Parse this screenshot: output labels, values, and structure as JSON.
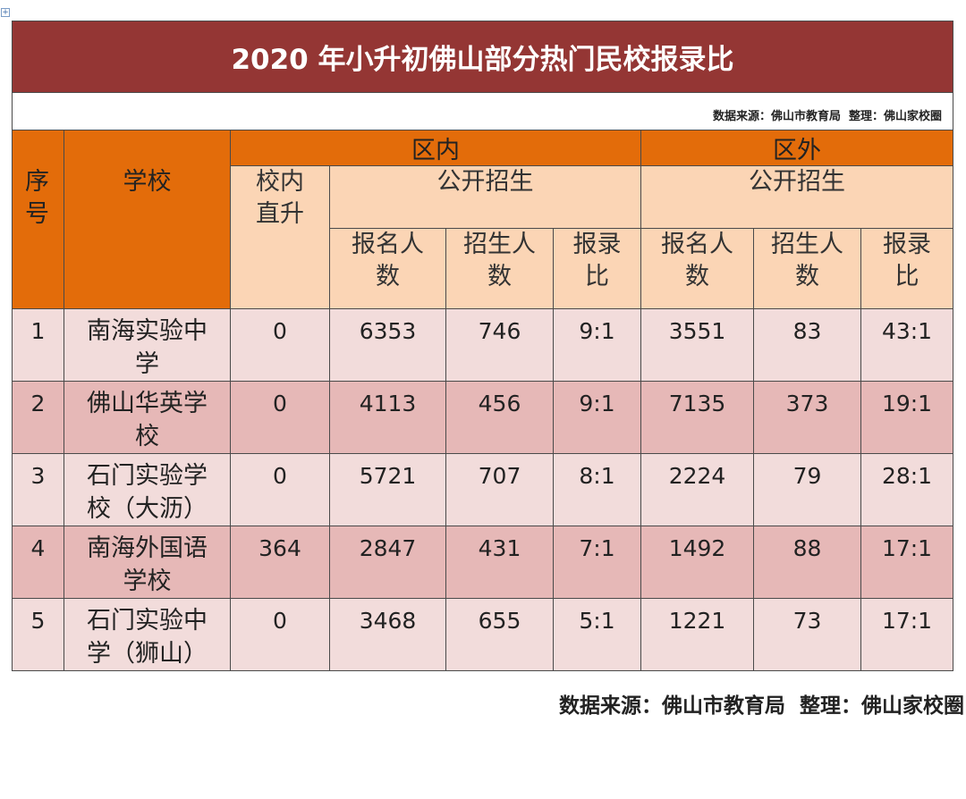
{
  "title": "2020 年小升初佛山部分热门民校报录比",
  "source_note": "数据来源：佛山市教育局  整理：佛山家校圈",
  "table": {
    "header": {
      "seq": "序号",
      "school": "学校",
      "in_district": {
        "label": "区内",
        "direct": "校内直升",
        "open": {
          "label": "公开招生",
          "cols": [
            "报名人数",
            "招生人数",
            "报录比"
          ]
        }
      },
      "out_district": {
        "label": "区外",
        "open": {
          "label": "公开招生",
          "cols": [
            "报名人数",
            "招生人数",
            "报录比"
          ]
        }
      }
    },
    "rows": [
      [
        1,
        "南海实验中学",
        0,
        6353,
        746,
        "9:1",
        3551,
        83,
        "43:1"
      ],
      [
        2,
        "佛山华英学校",
        0,
        4113,
        456,
        "9:1",
        7135,
        373,
        "19:1"
      ],
      [
        3,
        "石门实验学校（大沥）",
        0,
        5721,
        707,
        "8:1",
        2224,
        79,
        "28:1"
      ],
      [
        4,
        "南海外国语学校",
        364,
        2847,
        431,
        "7:1",
        1492,
        88,
        "17:1"
      ],
      [
        5,
        "石门实验中学（狮山）",
        0,
        3468,
        655,
        "5:1",
        1221,
        73,
        "17:1"
      ]
    ]
  },
  "footer": "数据来源：佛山市教育局  整理：佛山家校圈"
}
